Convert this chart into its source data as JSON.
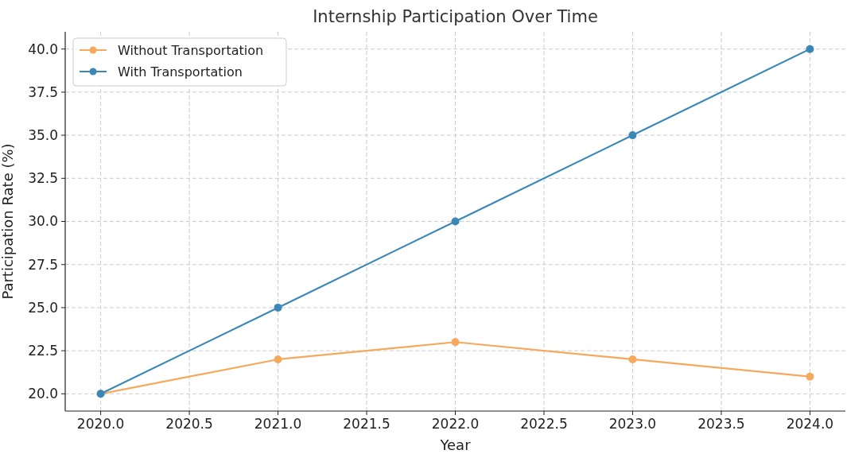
{
  "chart_data": {
    "type": "line",
    "title": "Internship Participation Over Time",
    "xlabel": "Year",
    "ylabel": "Participation Rate (%)",
    "x": [
      2020,
      2021,
      2022,
      2023,
      2024
    ],
    "series": [
      {
        "name": "Without Transportation",
        "color": "#f5a95c",
        "values": [
          20,
          22,
          23,
          22,
          21
        ]
      },
      {
        "name": "With Transportation",
        "color": "#3a87b8",
        "values": [
          20,
          25,
          30,
          35,
          40
        ]
      }
    ],
    "xlim": [
      2019.8,
      2024.2
    ],
    "xticks": [
      {
        "value": 2020,
        "label": "2020.0"
      },
      {
        "value": 2020.5,
        "label": "2020.5"
      },
      {
        "value": 2021,
        "label": "2021.0"
      },
      {
        "value": 2021.5,
        "label": "2021.5"
      },
      {
        "value": 2022,
        "label": "2022.0"
      },
      {
        "value": 2022.5,
        "label": "2022.5"
      },
      {
        "value": 2023,
        "label": "2023.0"
      },
      {
        "value": 2023.5,
        "label": "2023.5"
      },
      {
        "value": 2024,
        "label": "2024.0"
      }
    ],
    "ylim": [
      19,
      41
    ],
    "yticks": [
      {
        "value": 20,
        "label": "20.0"
      },
      {
        "value": 22.5,
        "label": "22.5"
      },
      {
        "value": 25,
        "label": "25.0"
      },
      {
        "value": 27.5,
        "label": "27.5"
      },
      {
        "value": 30,
        "label": "30.0"
      },
      {
        "value": 32.5,
        "label": "32.5"
      },
      {
        "value": 35,
        "label": "35.0"
      },
      {
        "value": 37.5,
        "label": "37.5"
      },
      {
        "value": 40,
        "label": "40.0"
      }
    ],
    "grid": true,
    "legend": "top left",
    "marker": "circle",
    "line_style": "solid"
  }
}
